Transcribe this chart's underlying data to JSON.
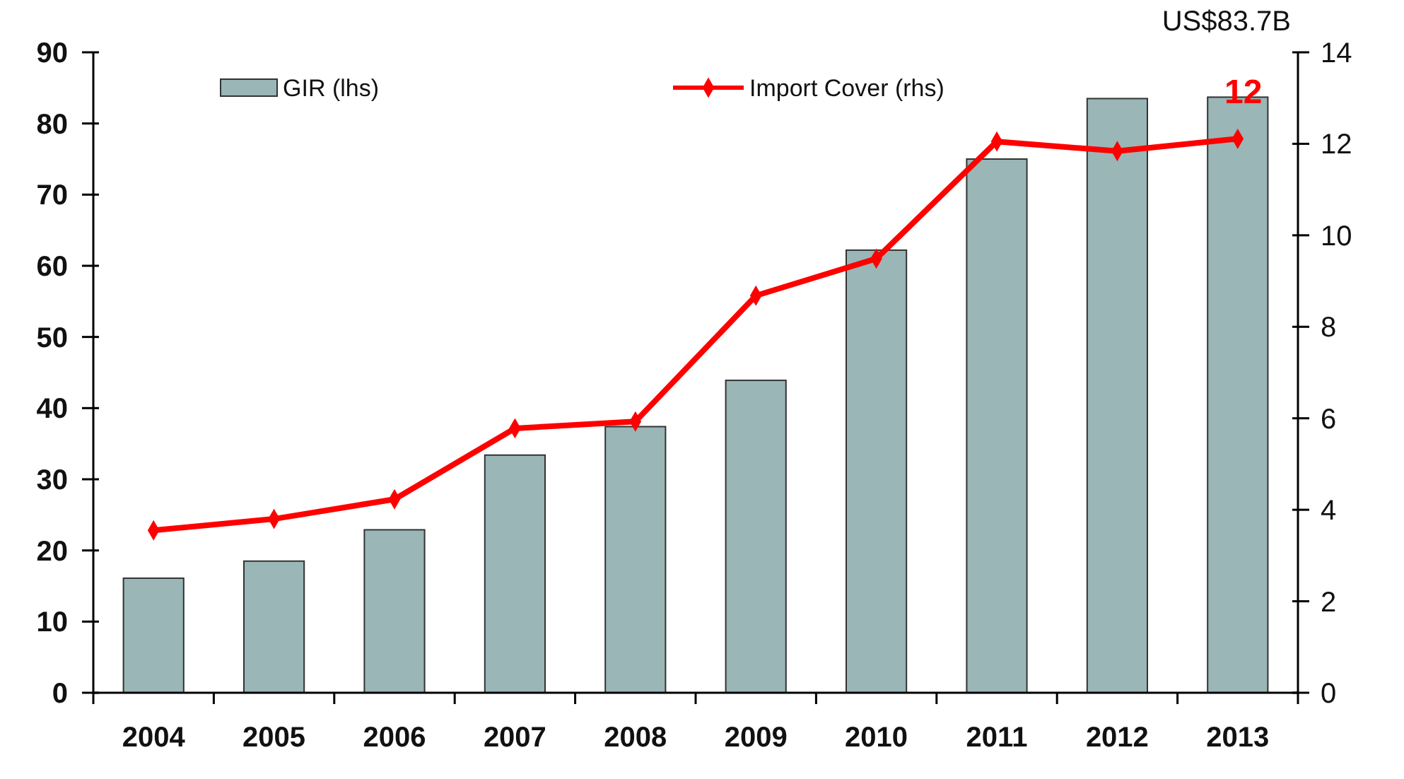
{
  "chart_data": {
    "type": "bar",
    "categories": [
      "2004",
      "2005",
      "2006",
      "2007",
      "2008",
      "2009",
      "2010",
      "2011",
      "2012",
      "2013"
    ],
    "series": [
      {
        "name": "GIR  (lhs)",
        "color": "#9ab6b7",
        "values": [
          16.1,
          18.5,
          22.9,
          33.4,
          37.4,
          43.9,
          62.2,
          75,
          83.5,
          83.7
        ]
      },
      {
        "name": "Import Cover (rhs)",
        "type": "line",
        "axis": "y2",
        "color": "#ff0000",
        "marker": "diamond",
        "values": [
          3.55,
          3.8,
          4.23,
          5.78,
          5.93,
          8.68,
          9.49,
          12.05,
          11.84,
          12.11
        ]
      }
    ],
    "ylim": [
      0,
      90
    ],
    "yticks": [
      0,
      10,
      20,
      30,
      40,
      50,
      60,
      70,
      80,
      90
    ],
    "y2lim": [
      0,
      14
    ],
    "y2ticks": [
      0,
      2,
      4,
      6,
      8,
      10,
      12,
      14
    ],
    "annotations": [
      {
        "text": "US$83.7B",
        "x": "2013",
        "y": 83.7
      },
      "12"
    ],
    "legend": "top",
    "grid": false
  }
}
